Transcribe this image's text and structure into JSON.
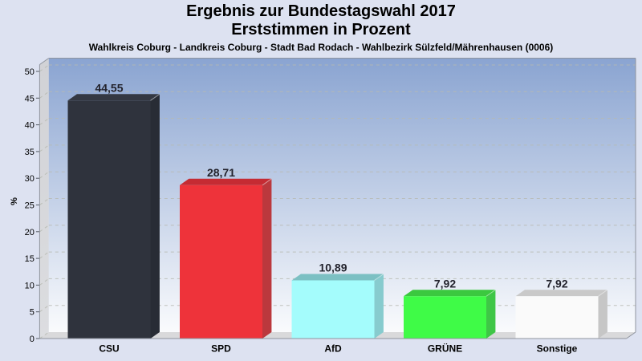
{
  "chart_data": {
    "type": "bar",
    "style": "3d-column",
    "title": "Ergebnis zur Bundestagswahl 2017",
    "subtitle": "Erststimmen in Prozent",
    "region_line": "Wahlkreis Coburg - Landkreis Coburg - Stadt Bad Rodach - Wahlbezirk Sülzfeld/Mährenhausen (0006)",
    "categories": [
      "CSU",
      "SPD",
      "AfD",
      "GRÜNE",
      "Sonstige"
    ],
    "values": [
      44.55,
      28.71,
      10.89,
      7.92,
      7.92
    ],
    "value_labels": [
      "44,55",
      "28,71",
      "10,89",
      "7,92",
      "7,92"
    ],
    "bar_colors": [
      {
        "front": "#2f333d",
        "top": "#343842",
        "side": "#282c35"
      },
      {
        "front": "#ee333a",
        "top": "#c52b33",
        "side": "#bb383d"
      },
      {
        "front": "#a4fcfc",
        "top": "#7cc0c3",
        "side": "#87cbce"
      },
      {
        "front": "#3ffb47",
        "top": "#3bc83f",
        "side": "#3fc647"
      },
      {
        "front": "#fafafa",
        "top": "#c9c9c9",
        "side": "#c6c6c6"
      }
    ],
    "xlabel": "",
    "ylabel": "%",
    "yticks": [
      0,
      5,
      10,
      15,
      20,
      25,
      30,
      35,
      40,
      45,
      50
    ],
    "ylim": [
      0,
      51.3
    ],
    "grid": "dashed-horizontal",
    "legend": "none",
    "colors": {
      "page_bg": "#dde2f1",
      "plot_gradient_top": "#8aa4d1",
      "plot_gradient_bottom": "#fafbfd",
      "left_wall": "#d1d2d6",
      "left_wall_light": "#dcdde0",
      "floor": "#d9d9db",
      "gridline": "#b7bab2",
      "border": "#8f949e",
      "tick": "#555a63",
      "value_label": "#23232d",
      "text": "#000000"
    }
  }
}
